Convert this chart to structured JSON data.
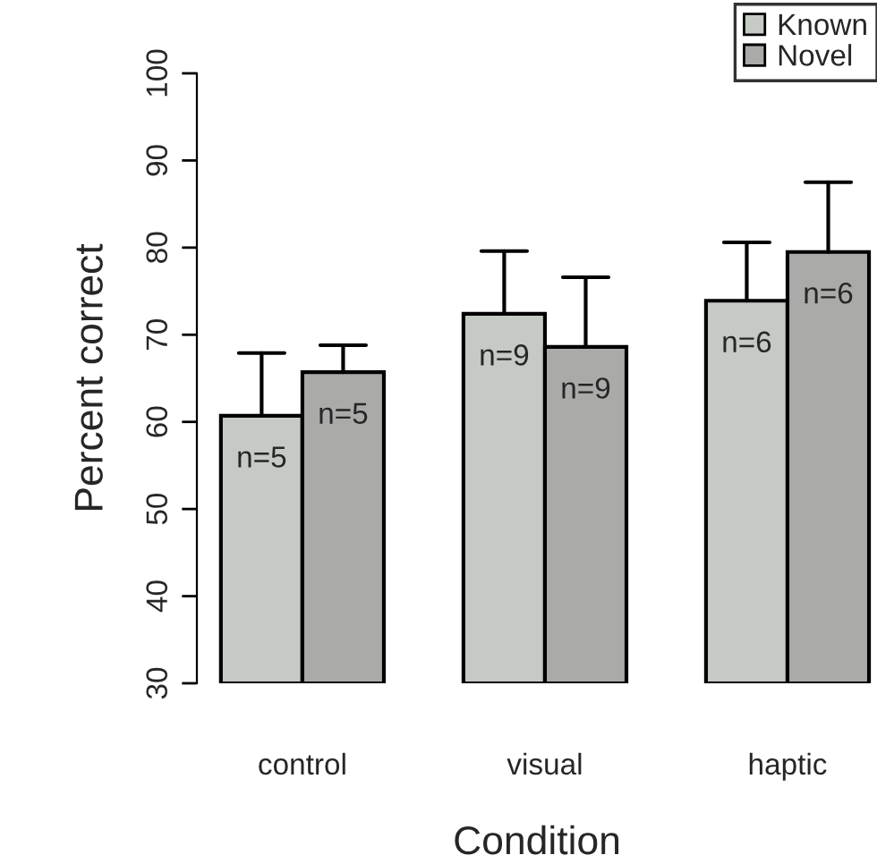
{
  "chart_data": {
    "type": "bar",
    "xlabel": "Condition",
    "ylabel": "Percent correct",
    "categories": [
      "control",
      "visual",
      "haptic"
    ],
    "series": [
      {
        "name": "Known",
        "color": "#c6cac5",
        "values": [
          60.7,
          72.4,
          73.9
        ],
        "errors": [
          [
            60.7,
            67.9
          ],
          [
            72.4,
            79.6
          ],
          [
            73.9,
            80.6
          ]
        ]
      },
      {
        "name": "Novel",
        "color": "#aaaaa9",
        "values": [
          65.7,
          68.6,
          79.5
        ],
        "errors": [
          [
            65.7,
            68.8
          ],
          [
            68.6,
            76.6
          ],
          [
            79.5,
            87.5
          ]
        ]
      }
    ],
    "annotations": [
      {
        "text": "n=5",
        "x": "control",
        "y": 60.7
      },
      {
        "text": "n=5",
        "x": "control",
        "y": 65.7
      },
      {
        "text": "n=9",
        "x": "visual",
        "y": 72.4
      },
      {
        "text": "n=9",
        "x": "visual",
        "y": 68.6
      },
      {
        "text": "n=6",
        "x": "haptic",
        "y": 73.9
      },
      {
        "text": "n=6",
        "x": "haptic",
        "y": 79.5
      }
    ],
    "ylim": [
      30,
      100
    ],
    "yticks": [
      30,
      40,
      50,
      60,
      70,
      80,
      90,
      100
    ],
    "grid": false,
    "legend": "top right"
  }
}
